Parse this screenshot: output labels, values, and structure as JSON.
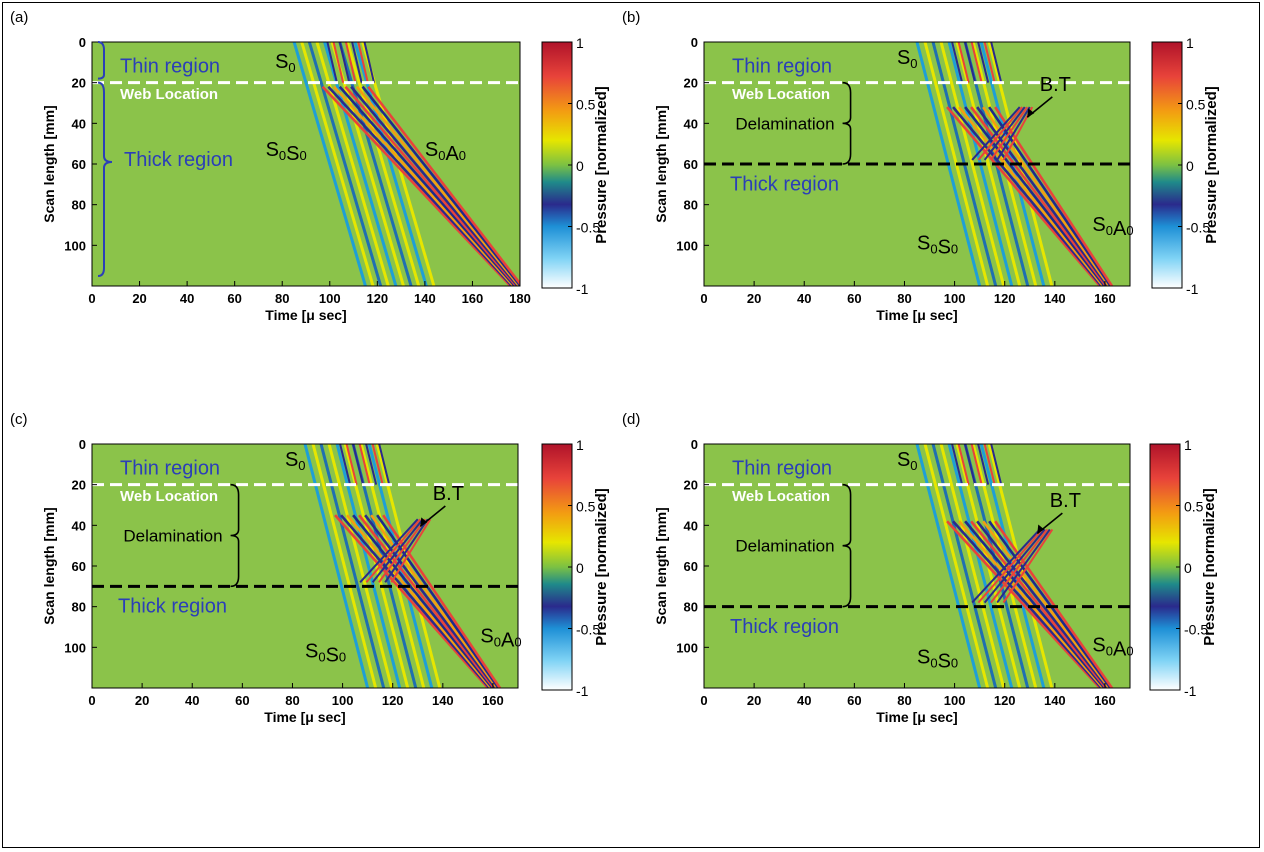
{
  "chart_data": [
    {
      "type": "heatmap",
      "panel_label": "(a)",
      "xlabel": "Time [μ sec]",
      "ylabel": "Scan length [mm]",
      "colorbar_label": "Pressure [normalized]",
      "xlim": [
        0,
        180
      ],
      "ylim": [
        0,
        120
      ],
      "xticks": [
        0,
        20,
        40,
        60,
        80,
        100,
        120,
        140,
        160,
        180
      ],
      "yticks": [
        0,
        20,
        40,
        60,
        80,
        100
      ],
      "colorbar_ticks": [
        1,
        0.5,
        0,
        -0.5,
        -1
      ],
      "web_location_mm": 20,
      "delamination_end_mm": null,
      "wave_start_us": 85,
      "labels": {
        "thin": "Thin region",
        "web": "Web Location",
        "thick": "Thick region",
        "s0": "S",
        "s0s0": "SS",
        "s0a0": "SA",
        "bt": "",
        "delam": ""
      }
    },
    {
      "type": "heatmap",
      "panel_label": "(b)",
      "xlabel": "Time [μ sec]",
      "ylabel": "Scan length [mm]",
      "colorbar_label": "Pressure [normalized]",
      "xlim": [
        0,
        170
      ],
      "ylim": [
        0,
        120
      ],
      "xticks": [
        0,
        20,
        40,
        60,
        80,
        100,
        120,
        140,
        160
      ],
      "yticks": [
        0,
        20,
        40,
        60,
        80,
        100
      ],
      "colorbar_ticks": [
        1,
        0.5,
        0,
        -0.5,
        -1
      ],
      "web_location_mm": 20,
      "delamination_end_mm": 60,
      "wave_start_us": 85,
      "labels": {
        "thin": "Thin region",
        "web": "Web Location",
        "thick": "Thick region",
        "s0": "S",
        "s0s0": "SS",
        "s0a0": "SA",
        "bt": "B.T",
        "delam": "Delamination"
      }
    },
    {
      "type": "heatmap",
      "panel_label": "(c)",
      "xlabel": "Time [μ sec]",
      "ylabel": "Scan length [mm]",
      "colorbar_label": "Pressure [normalized]",
      "xlim": [
        0,
        170
      ],
      "ylim": [
        0,
        120
      ],
      "xticks": [
        0,
        20,
        40,
        60,
        80,
        100,
        120,
        140,
        160
      ],
      "yticks": [
        0,
        20,
        40,
        60,
        80,
        100
      ],
      "colorbar_ticks": [
        1,
        0.5,
        0,
        -0.5,
        -1
      ],
      "web_location_mm": 20,
      "delamination_end_mm": 70,
      "wave_start_us": 85,
      "labels": {
        "thin": "Thin region",
        "web": "Web Location",
        "thick": "Thick region",
        "s0": "S",
        "s0s0": "SS",
        "s0a0": "SA",
        "bt": "B.T",
        "delam": "Delamination"
      }
    },
    {
      "type": "heatmap",
      "panel_label": "(d)",
      "xlabel": "Time [μ sec]",
      "ylabel": "Scan length [mm]",
      "colorbar_label": "Pressure [normalized]",
      "xlim": [
        0,
        170
      ],
      "ylim": [
        0,
        120
      ],
      "xticks": [
        0,
        20,
        40,
        60,
        80,
        100,
        120,
        140,
        160
      ],
      "yticks": [
        0,
        20,
        40,
        60,
        80,
        100
      ],
      "colorbar_ticks": [
        1,
        0.5,
        0,
        -0.5,
        -1
      ],
      "web_location_mm": 20,
      "delamination_end_mm": 80,
      "wave_start_us": 85,
      "labels": {
        "thin": "Thin region",
        "web": "Web Location",
        "thick": "Thick region",
        "s0": "S",
        "s0s0": "SS",
        "s0a0": "SA",
        "bt": "B.T",
        "delam": "Delamination"
      }
    }
  ],
  "colors": {
    "background": "#8bc34a",
    "web_line": "#ffffff",
    "delamination_line": "#000000",
    "region_text": "#2b3fb8",
    "colormap": [
      "#ffffff",
      "#7fd3f5",
      "#1e90d6",
      "#2a2a8c",
      "#1f8a8a",
      "#7cc143",
      "#e6e600",
      "#f39c12",
      "#e8433a",
      "#b0132a"
    ]
  }
}
